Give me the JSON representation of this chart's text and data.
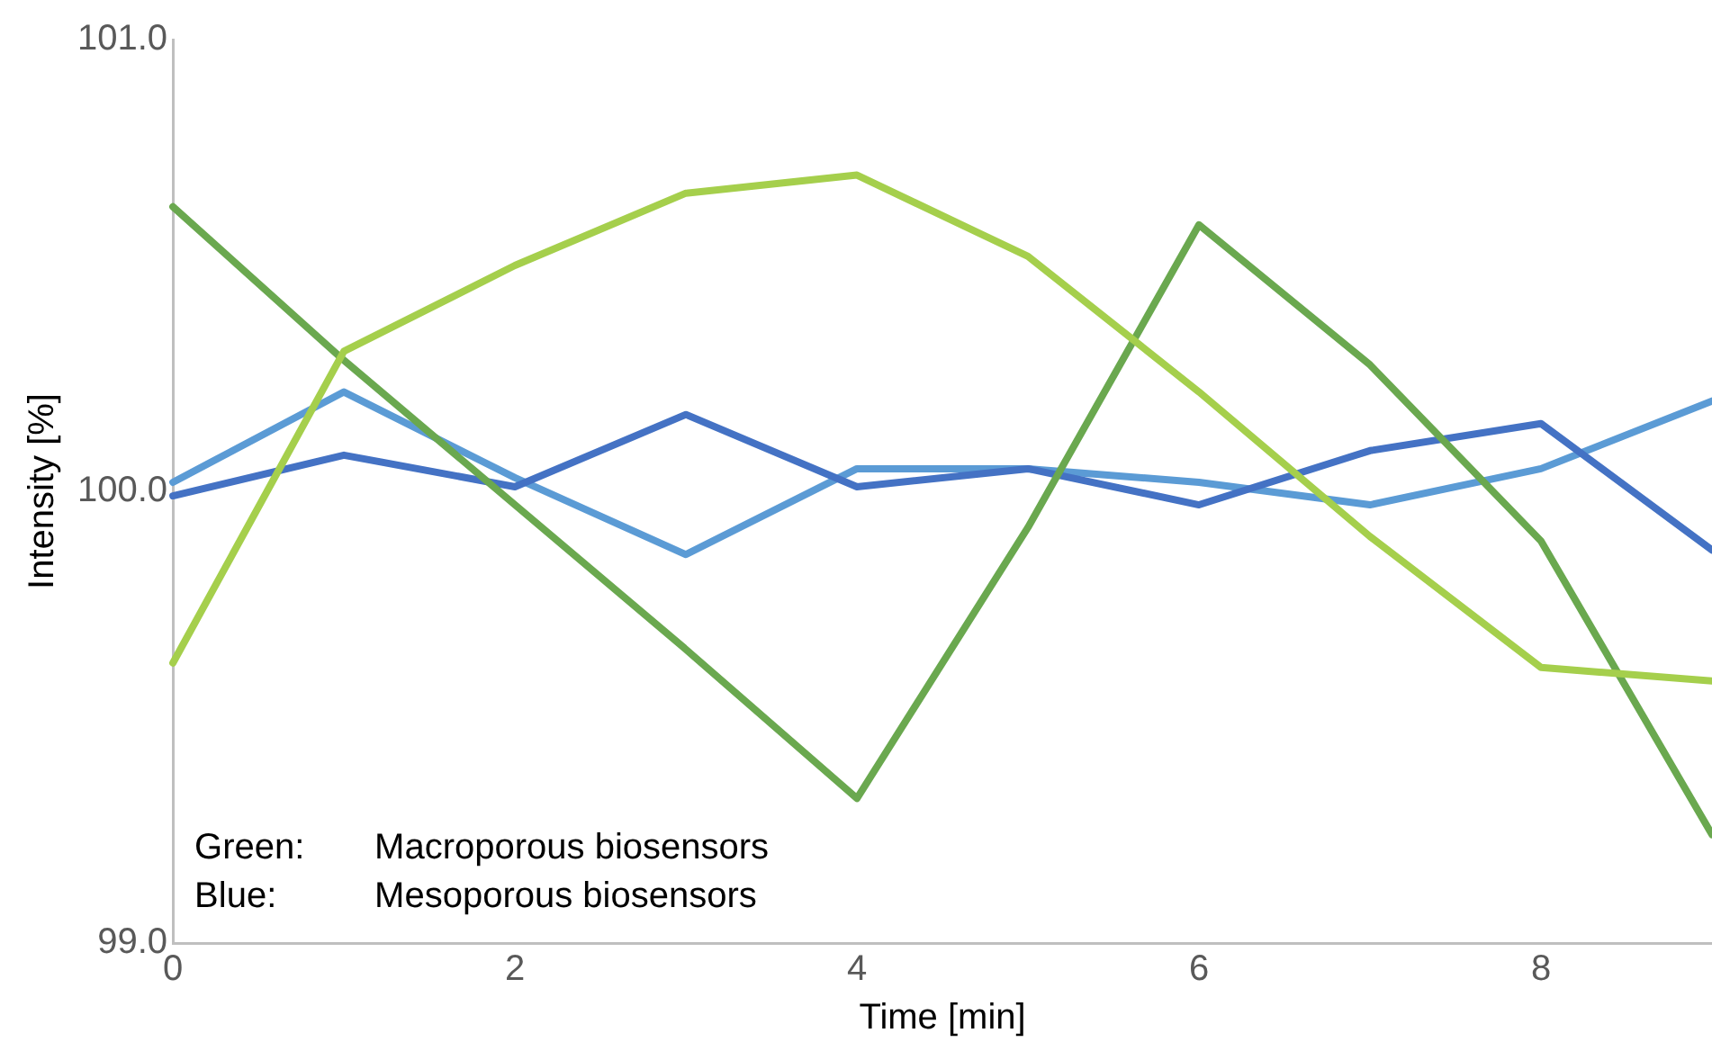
{
  "chart_data": {
    "type": "line",
    "xlabel": "Time [min]",
    "ylabel": "Intensity [%]",
    "x": [
      0,
      1,
      2,
      3,
      4,
      5,
      6,
      7,
      8,
      9
    ],
    "series": [
      {
        "color": "#a5cf4c",
        "values": [
          99.62,
          100.31,
          100.5,
          100.66,
          100.7,
          100.52,
          100.22,
          99.9,
          99.61,
          99.58
        ]
      },
      {
        "color": "#6aa84f",
        "values": [
          100.63,
          100.29,
          99.97,
          99.65,
          99.32,
          99.92,
          100.59,
          100.28,
          99.89,
          99.24
        ]
      },
      {
        "color": "#4472c4",
        "values": [
          99.99,
          100.08,
          100.01,
          100.17,
          100.01,
          100.05,
          99.97,
          100.09,
          100.15,
          99.87
        ]
      },
      {
        "color": "#5b9bd5",
        "values": [
          100.02,
          100.22,
          100.03,
          99.86,
          100.05,
          100.05,
          100.02,
          99.97,
          100.05,
          100.2
        ]
      }
    ],
    "xlim": [
      0,
      9
    ],
    "xticks": [
      0,
      2,
      4,
      6,
      8
    ],
    "ylim": [
      99,
      101
    ],
    "yticks": [
      {
        "value": 99,
        "label": "99.0"
      },
      {
        "value": 100,
        "label": "100.0"
      },
      {
        "value": 101,
        "label": "101.0"
      }
    ],
    "grid": false,
    "legend": false,
    "marker": "none",
    "line_style": "solid",
    "annotations": [
      "Green:\tMacroporous biosensors",
      "Blue:\tMesoporous biosensors"
    ]
  }
}
